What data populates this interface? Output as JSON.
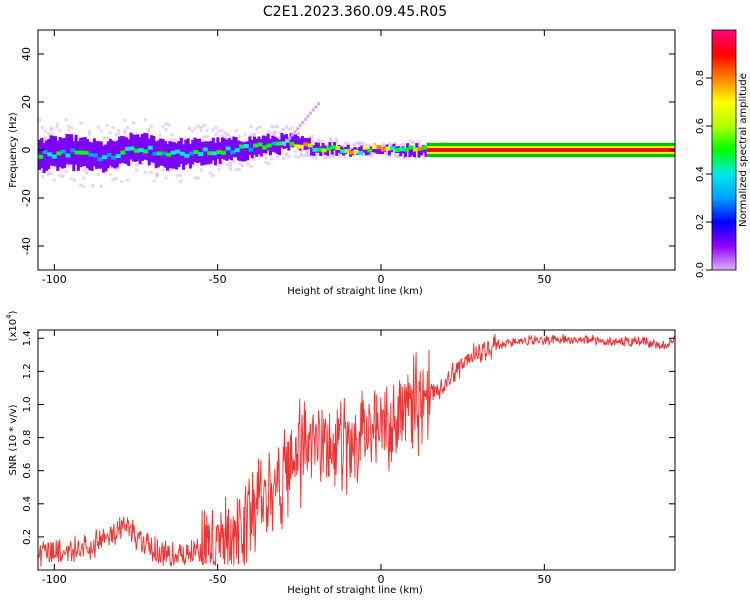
{
  "title": "C2E1.2023.360.09.45.R05",
  "chart_data": [
    {
      "type": "heatmap",
      "xlabel": "Height of straight line (km)",
      "ylabel": "Frequency (Hz)",
      "xlim": [
        -105,
        90
      ],
      "ylim": [
        -50,
        50
      ],
      "x_ticks": [
        -100,
        -50,
        0,
        50
      ],
      "x_tick_labels": [
        "-100",
        "-50",
        "0",
        "50"
      ],
      "y_ticks": [
        -40,
        -20,
        0,
        20,
        40
      ],
      "y_tick_labels": [
        "-40",
        "-20",
        "0",
        "20",
        "40"
      ],
      "colorbar": {
        "label": "Normalized spectral amplitude",
        "range": [
          0,
          1
        ],
        "ticks": [
          0.0,
          0.2,
          0.4,
          0.6,
          0.8
        ],
        "tick_labels": [
          "0.0",
          "0.2",
          "0.4",
          "0.6",
          "0.8"
        ],
        "colormap": [
          "#e0b0ff",
          "#9000ff",
          "#0000ff",
          "#00a0ff",
          "#00e8e8",
          "#00ff00",
          "#b0ff00",
          "#ffff00",
          "#ff8000",
          "#ff0000",
          "#ff0080"
        ]
      },
      "ridge": {
        "description_points_x": [
          -105,
          -95,
          -85,
          -75,
          -65,
          -55,
          -45,
          -35,
          -28,
          -20,
          -10,
          0,
          10,
          20,
          30,
          50,
          70,
          90
        ],
        "frequency_y": [
          -2,
          -1,
          -3,
          1,
          -2,
          -1,
          0,
          2,
          3,
          1,
          0,
          0,
          0,
          0,
          0,
          0,
          0,
          0
        ],
        "spread_hz": [
          9,
          9,
          8,
          8,
          8,
          7,
          6,
          5,
          4,
          3,
          2,
          1.5,
          2.5,
          1.5,
          1,
          1,
          1,
          1
        ]
      }
    },
    {
      "type": "line",
      "xlabel": "Height of straight line (km)",
      "ylabel": "SNR (10 * v/v)",
      "y_multiplier": "(x10",
      "y_multiplier_exp": "4",
      "y_multiplier_close": ")",
      "xlim": [
        -105,
        90
      ],
      "ylim": [
        0,
        1.45
      ],
      "x_ticks": [
        -100,
        -50,
        0,
        50
      ],
      "x_tick_labels": [
        "-100",
        "-50",
        "0",
        "50"
      ],
      "y_ticks": [
        0.2,
        0.4,
        0.6,
        0.8,
        1.0,
        1.2,
        1.4
      ],
      "y_tick_labels": [
        "0.2",
        "0.4",
        "0.6",
        "0.8",
        "1.0",
        "1.2",
        "1.4"
      ],
      "color": "#ee3333",
      "x": [
        -105,
        -100,
        -95,
        -90,
        -85,
        -80,
        -78,
        -75,
        -70,
        -65,
        -60,
        -55,
        -50,
        -45,
        -40,
        -35,
        -30,
        -25,
        -20,
        -15,
        -10,
        -5,
        0,
        5,
        10,
        15,
        20,
        25,
        30,
        35,
        40,
        50,
        60,
        70,
        80,
        88,
        90
      ],
      "y": [
        0.1,
        0.12,
        0.14,
        0.13,
        0.18,
        0.25,
        0.3,
        0.18,
        0.12,
        0.09,
        0.08,
        0.12,
        0.14,
        0.2,
        0.35,
        0.45,
        0.55,
        0.7,
        0.78,
        0.75,
        0.78,
        0.82,
        0.9,
        0.92,
        1.0,
        1.05,
        1.15,
        1.25,
        1.32,
        1.36,
        1.38,
        1.39,
        1.39,
        1.38,
        1.38,
        1.35,
        1.4
      ]
    }
  ]
}
